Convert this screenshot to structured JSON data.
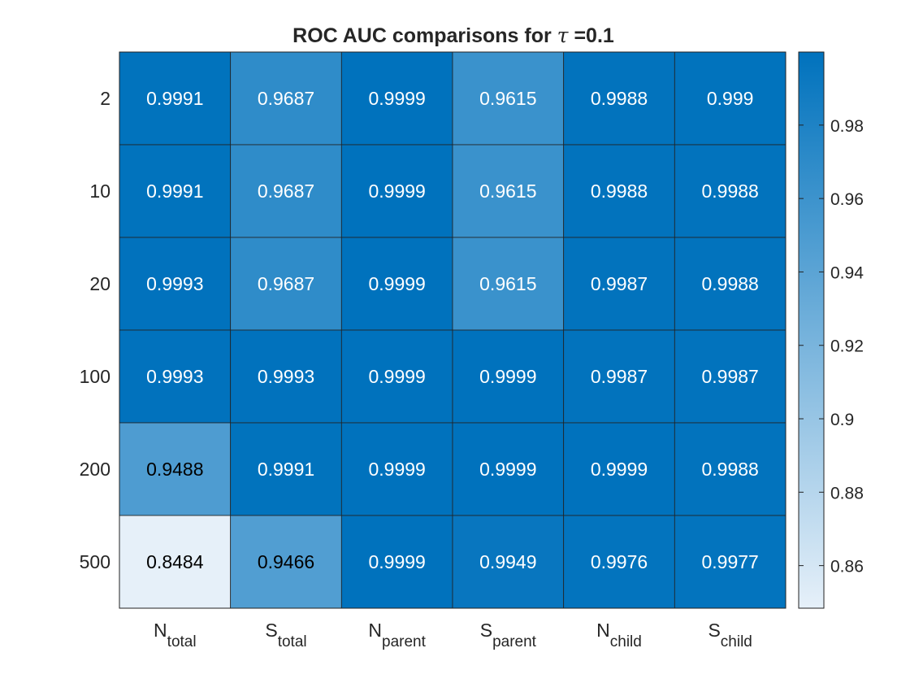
{
  "chart_data": {
    "type": "heatmap",
    "title": "ROC AUC comparisons for τ =0.1",
    "title_parts": {
      "prefix": "ROC AUC comparisons for ",
      "symbol": "τ",
      "suffix": " =0.1"
    },
    "rows": [
      "2",
      "10",
      "20",
      "100",
      "200",
      "500"
    ],
    "columns": [
      {
        "base": "N",
        "sub": "total"
      },
      {
        "base": "S",
        "sub": "total"
      },
      {
        "base": "N",
        "sub": "parent"
      },
      {
        "base": "S",
        "sub": "parent"
      },
      {
        "base": "N",
        "sub": "child"
      },
      {
        "base": "S",
        "sub": "child"
      }
    ],
    "values": [
      [
        0.9991,
        0.9687,
        0.9999,
        0.9615,
        0.9988,
        0.999
      ],
      [
        0.9991,
        0.9687,
        0.9999,
        0.9615,
        0.9988,
        0.9988
      ],
      [
        0.9993,
        0.9687,
        0.9999,
        0.9615,
        0.9987,
        0.9988
      ],
      [
        0.9993,
        0.9993,
        0.9999,
        0.9999,
        0.9987,
        0.9987
      ],
      [
        0.9488,
        0.9991,
        0.9999,
        0.9999,
        0.9999,
        0.9988
      ],
      [
        0.8484,
        0.9466,
        0.9999,
        0.9949,
        0.9976,
        0.9977
      ]
    ],
    "cell_labels": [
      [
        "0.9991",
        "0.9687",
        "0.9999",
        "0.9615",
        "0.9988",
        "0.999"
      ],
      [
        "0.9991",
        "0.9687",
        "0.9999",
        "0.9615",
        "0.9988",
        "0.9988"
      ],
      [
        "0.9993",
        "0.9687",
        "0.9999",
        "0.9615",
        "0.9987",
        "0.9988"
      ],
      [
        "0.9993",
        "0.9993",
        "0.9999",
        "0.9999",
        "0.9987",
        "0.9987"
      ],
      [
        "0.9488",
        "0.9991",
        "0.9999",
        "0.9999",
        "0.9999",
        "0.9988"
      ],
      [
        "0.8484",
        "0.9466",
        "0.9999",
        "0.9949",
        "0.9976",
        "0.9977"
      ]
    ],
    "colorbar": {
      "range": [
        0.8484,
        0.9999
      ],
      "ticks": [
        0.86,
        0.88,
        0.9,
        0.92,
        0.94,
        0.96,
        0.98
      ],
      "tick_labels": [
        "0.86",
        "0.88",
        "0.9",
        "0.92",
        "0.94",
        "0.96",
        "0.98"
      ],
      "position": "right"
    },
    "colors": {
      "low": "#e6f0f9",
      "high": "#0072bd",
      "grid_line": "#222222",
      "dark_text": "#000000",
      "light_text": "#ffffff",
      "axis_text": "#262626"
    }
  }
}
